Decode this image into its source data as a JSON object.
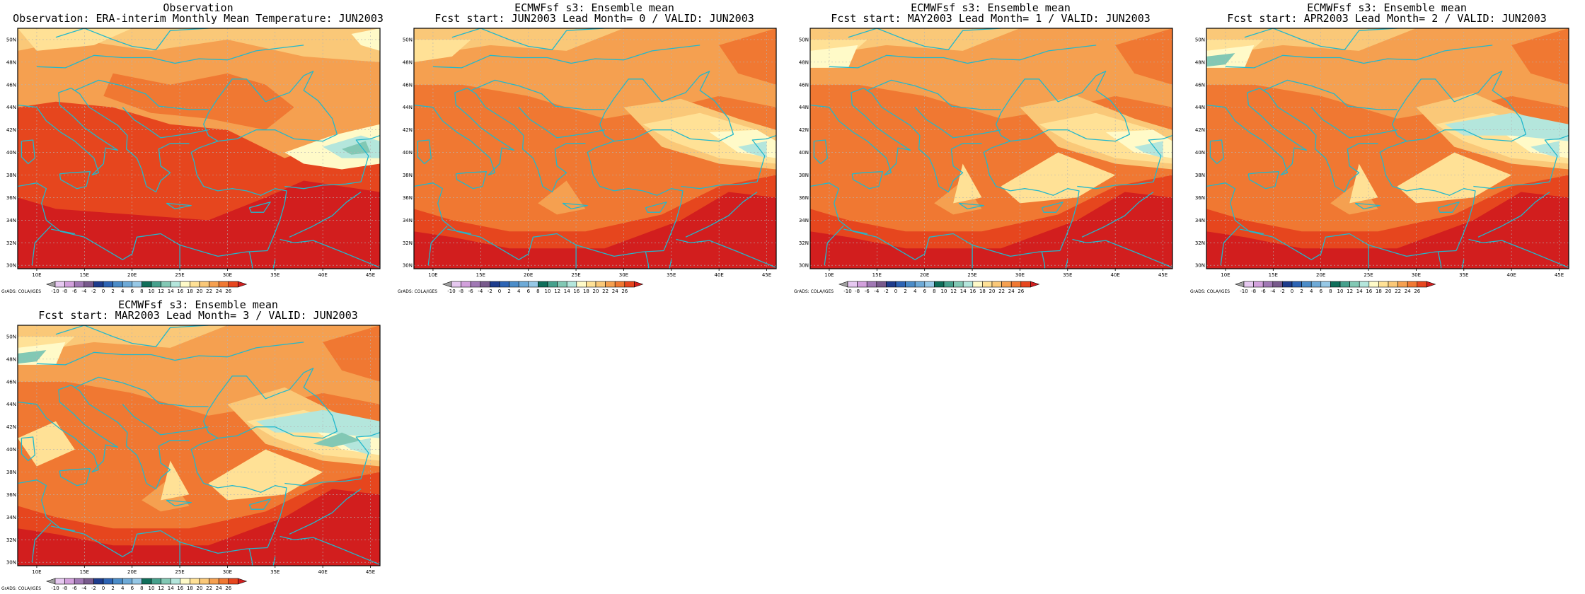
{
  "colors": {
    "levels": [
      -10,
      -8,
      -6,
      -4,
      -2,
      0,
      2,
      4,
      6,
      8,
      10,
      12,
      14,
      16,
      18,
      20,
      22,
      24,
      26
    ],
    "fills": [
      "#a0a0a0",
      "#e6c8f0",
      "#d2a0dc",
      "#a078b4",
      "#785a8c",
      "#1e3c8c",
      "#2d64b4",
      "#4b8cc8",
      "#6eaad7",
      "#96c8e6",
      "#0f6e5a",
      "#46a08c",
      "#82c8b4",
      "#b4e6dc",
      "#fffac8",
      "#ffe196",
      "#fac878",
      "#f5a050",
      "#f07832",
      "#e6461e",
      "#d21e1e"
    ],
    "coast": "#22b8cc",
    "grid": "#b4b4b4"
  },
  "credit": "GrADS: COLA/IGES",
  "colorbar_labels": [
    "-10",
    "-8",
    "-6",
    "-4",
    "-2",
    "0",
    "2",
    "4",
    "6",
    "8",
    "10",
    "12",
    "14",
    "16",
    "18",
    "20",
    "22",
    "24",
    "26"
  ],
  "lon_labels": [
    "10E",
    "15E",
    "20E",
    "25E",
    "30E",
    "35E",
    "40E",
    "45E"
  ],
  "lat_labels": [
    "30N",
    "32N",
    "34N",
    "36N",
    "38N",
    "40N",
    "42N",
    "44N",
    "46N",
    "48N",
    "50N"
  ],
  "panels": [
    {
      "title": "Observation",
      "subtitle": "Observation: ERA-interim Monthly Mean Temperature: JUN2003",
      "variant": 0
    },
    {
      "title": "ECMWFsf s3: Ensemble mean",
      "subtitle": "Fcst start: JUN2003  Lead Month= 0 / VALID: JUN2003",
      "variant": 1
    },
    {
      "title": "ECMWFsf s3: Ensemble mean",
      "subtitle": "Fcst start: MAY2003  Lead Month= 1 / VALID: JUN2003",
      "variant": 2
    },
    {
      "title": "ECMWFsf s3: Ensemble mean",
      "subtitle": "Fcst start: APR2003  Lead Month= 2 / VALID: JUN2003",
      "variant": 3
    },
    {
      "title": "ECMWFsf s3: Ensemble mean",
      "subtitle": "Fcst start: MAR2003  Lead Month= 3 / VALID: JUN2003",
      "variant": 4
    }
  ]
}
